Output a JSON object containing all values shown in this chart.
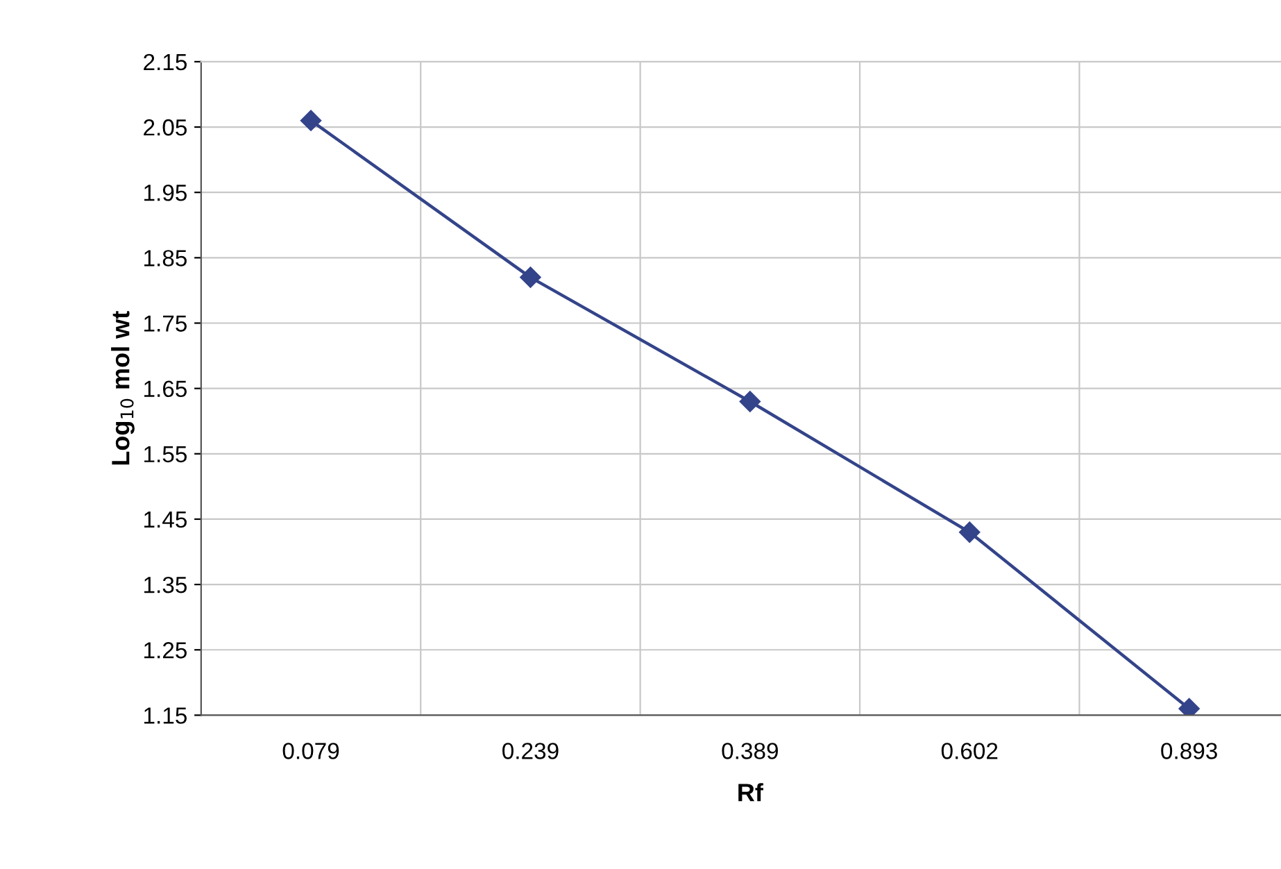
{
  "chart_data": {
    "type": "line",
    "xlabel": "Rf",
    "ylabel": "Log$_{10}$ mol wt",
    "categories": [
      "0.079",
      "0.239",
      "0.389",
      "0.602",
      "0.893"
    ],
    "series": [
      {
        "color": "#34448a",
        "values": [
          2.06,
          1.82,
          1.63,
          1.43,
          1.16
        ]
      }
    ],
    "ylim": [
      1.15,
      2.15
    ],
    "yticks": [
      {
        "value": 1.15,
        "label": "1.15"
      },
      {
        "value": 1.25,
        "label": "1.25"
      },
      {
        "value": 1.35,
        "label": "1.35"
      },
      {
        "value": 1.45,
        "label": "1.45"
      },
      {
        "value": 1.55,
        "label": "1.55"
      },
      {
        "value": 1.65,
        "label": "1.65"
      },
      {
        "value": 1.75,
        "label": "1.75"
      },
      {
        "value": 1.85,
        "label": "1.85"
      },
      {
        "value": 1.95,
        "label": "1.95"
      },
      {
        "value": 2.05,
        "label": "2.05"
      },
      {
        "value": 2.15,
        "label": "2.15"
      }
    ],
    "grid": true,
    "marker": "diamond",
    "line_style": "solid",
    "legend": false
  }
}
